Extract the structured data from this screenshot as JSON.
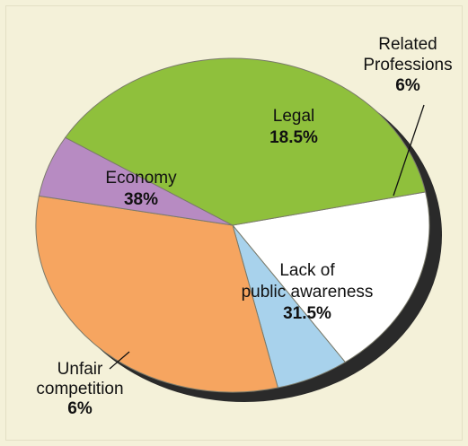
{
  "chart_data": {
    "type": "pie",
    "title": "",
    "slices": [
      {
        "label_lines": [
          "Legal"
        ],
        "value_label": "18.5%",
        "value": 18.5,
        "color": "#ffffff"
      },
      {
        "label_lines": [
          "Related",
          "Professions"
        ],
        "value_label": "6%",
        "value": 6,
        "color": "#a8d2ec"
      },
      {
        "label_lines": [
          "Lack of",
          "public awareness"
        ],
        "value_label": "31.5%",
        "value": 31.5,
        "color": "#f6a560"
      },
      {
        "label_lines": [
          "Unfair",
          "competition"
        ],
        "value_label": "6%",
        "value": 6,
        "color": "#b78bc2"
      },
      {
        "label_lines": [
          "Economy"
        ],
        "value_label": "38%",
        "value": 38,
        "color": "#8fc03c"
      }
    ]
  }
}
